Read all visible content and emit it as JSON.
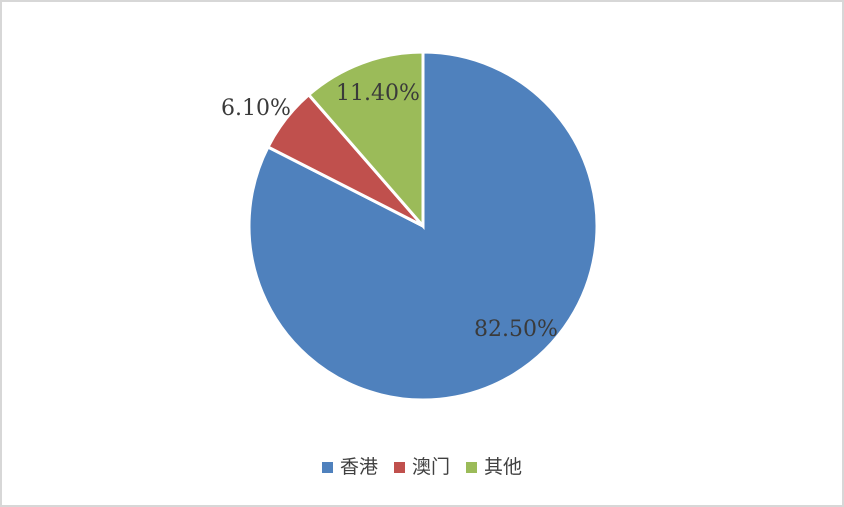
{
  "frame": {
    "background": "#FFFFFF",
    "border_color": "#D7D7D7"
  },
  "chart_data": {
    "type": "pie",
    "title": "",
    "categories": [
      "香港",
      "澳门",
      "其他"
    ],
    "values": [
      82.5,
      6.1,
      11.4
    ],
    "data_labels": [
      "82.50%",
      "6.10%",
      "11.40%"
    ],
    "colors": [
      "#4F81BD",
      "#C0504D",
      "#9BBB59"
    ],
    "start_angle_deg": 0,
    "direction": "clockwise",
    "slice_separator_color": "#FFFFFF",
    "label_color": "#3A3A3A",
    "legend_position": "bottom"
  },
  "legend": {
    "items": [
      {
        "label": "香港",
        "color": "#4F81BD"
      },
      {
        "label": "澳门",
        "color": "#C0504D"
      },
      {
        "label": "其他",
        "color": "#9BBB59"
      }
    ]
  }
}
